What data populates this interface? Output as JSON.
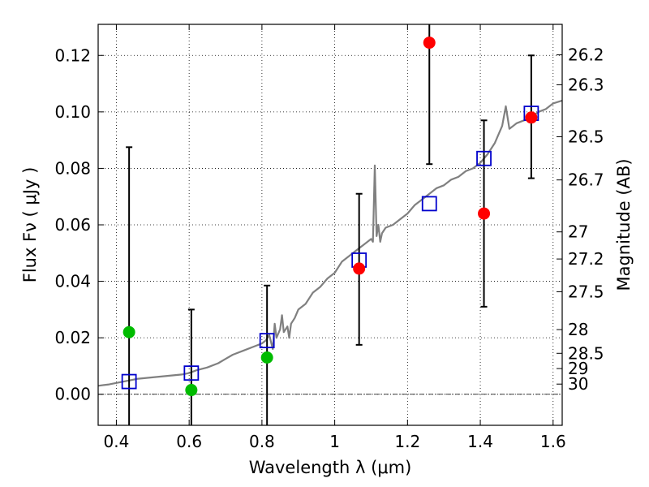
{
  "chart_data": {
    "type": "scatter",
    "xlabel": "Wavelength  λ (μm)",
    "ylabel": "Flux  Fν  ( μJy )",
    "y2label": "Magnitude (AB)",
    "xlim": [
      0.35,
      1.625
    ],
    "ylim": [
      -0.011,
      0.131
    ],
    "grid": true,
    "x_ticks": [
      {
        "value": 0.4,
        "label": "0.4"
      },
      {
        "value": 0.6,
        "label": "0.6"
      },
      {
        "value": 0.8,
        "label": "0.8"
      },
      {
        "value": 1.0,
        "label": "1"
      },
      {
        "value": 1.2,
        "label": "1.2"
      },
      {
        "value": 1.4,
        "label": "1.4"
      },
      {
        "value": 1.6,
        "label": "1.6"
      }
    ],
    "y_ticks": [
      {
        "value": 0.0,
        "label": "0.00"
      },
      {
        "value": 0.02,
        "label": "0.02"
      },
      {
        "value": 0.04,
        "label": "0.04"
      },
      {
        "value": 0.06,
        "label": "0.06"
      },
      {
        "value": 0.08,
        "label": "0.08"
      },
      {
        "value": 0.1,
        "label": "0.10"
      },
      {
        "value": 0.12,
        "label": "0.12"
      }
    ],
    "magnitude_ticks": [
      {
        "flux": 0.1202,
        "label": "26.2"
      },
      {
        "flux": 0.1096,
        "label": "26.3"
      },
      {
        "flux": 0.0912,
        "label": "26.5"
      },
      {
        "flux": 0.0759,
        "label": "26.7"
      },
      {
        "flux": 0.0575,
        "label": "27"
      },
      {
        "flux": 0.0479,
        "label": "27.2"
      },
      {
        "flux": 0.0363,
        "label": "27.5"
      },
      {
        "flux": 0.0229,
        "label": "28"
      },
      {
        "flux": 0.0145,
        "label": "28.5"
      },
      {
        "flux": 0.0091,
        "label": "29"
      },
      {
        "flux": 0.0036,
        "label": "30"
      }
    ],
    "zero_line": 0.0,
    "model_spectrum": {
      "color": "#808080",
      "x": [
        0.35,
        0.38,
        0.4,
        0.42,
        0.44,
        0.46,
        0.5,
        0.54,
        0.58,
        0.6,
        0.62,
        0.65,
        0.68,
        0.7,
        0.72,
        0.75,
        0.78,
        0.8,
        0.81,
        0.82,
        0.83,
        0.835,
        0.84,
        0.85,
        0.855,
        0.86,
        0.87,
        0.875,
        0.88,
        0.89,
        0.9,
        0.92,
        0.94,
        0.96,
        0.98,
        1.0,
        1.02,
        1.04,
        1.06,
        1.08,
        1.1,
        1.105,
        1.11,
        1.115,
        1.12,
        1.125,
        1.13,
        1.14,
        1.16,
        1.18,
        1.2,
        1.22,
        1.24,
        1.26,
        1.28,
        1.3,
        1.32,
        1.34,
        1.36,
        1.38,
        1.4,
        1.42,
        1.44,
        1.46,
        1.47,
        1.48,
        1.5,
        1.52,
        1.54,
        1.56,
        1.58,
        1.6,
        1.625
      ],
      "y": [
        0.003,
        0.0035,
        0.004,
        0.0045,
        0.005,
        0.0055,
        0.006,
        0.0065,
        0.007,
        0.0075,
        0.0085,
        0.0095,
        0.011,
        0.0125,
        0.014,
        0.0155,
        0.017,
        0.018,
        0.019,
        0.021,
        0.016,
        0.025,
        0.02,
        0.023,
        0.028,
        0.022,
        0.024,
        0.02,
        0.025,
        0.027,
        0.03,
        0.032,
        0.036,
        0.038,
        0.041,
        0.043,
        0.047,
        0.049,
        0.051,
        0.053,
        0.055,
        0.054,
        0.081,
        0.056,
        0.06,
        0.054,
        0.057,
        0.059,
        0.06,
        0.062,
        0.064,
        0.067,
        0.069,
        0.071,
        0.073,
        0.074,
        0.076,
        0.077,
        0.079,
        0.08,
        0.082,
        0.085,
        0.089,
        0.095,
        0.102,
        0.094,
        0.096,
        0.097,
        0.098,
        0.1,
        0.101,
        0.103,
        0.104
      ]
    },
    "model_photometry": {
      "marker": "open-square",
      "color": "#0000cc",
      "x": [
        0.435,
        0.606,
        0.814,
        1.067,
        1.26,
        1.41,
        1.54
      ],
      "y": [
        0.0045,
        0.0075,
        0.019,
        0.0475,
        0.0675,
        0.0835,
        0.0995
      ]
    },
    "observed_detections": {
      "marker": "filled-circle",
      "color": "#ff0000",
      "x": [
        1.067,
        1.26,
        1.41,
        1.54
      ],
      "y": [
        0.0445,
        0.1245,
        0.064,
        0.098
      ],
      "error_low": [
        0.0175,
        0.0815,
        0.031,
        0.0765
      ],
      "error_high": [
        0.071,
        0.131,
        0.097,
        0.12
      ]
    },
    "observed_low_snr": {
      "marker": "filled-circle",
      "color": "#00bb00",
      "x": [
        0.435,
        0.606,
        0.814
      ],
      "y": [
        0.022,
        0.0015,
        0.013
      ],
      "error_low": [
        -0.011,
        -0.011,
        -0.011
      ],
      "error_high": [
        0.0875,
        0.03,
        0.0385
      ]
    }
  }
}
